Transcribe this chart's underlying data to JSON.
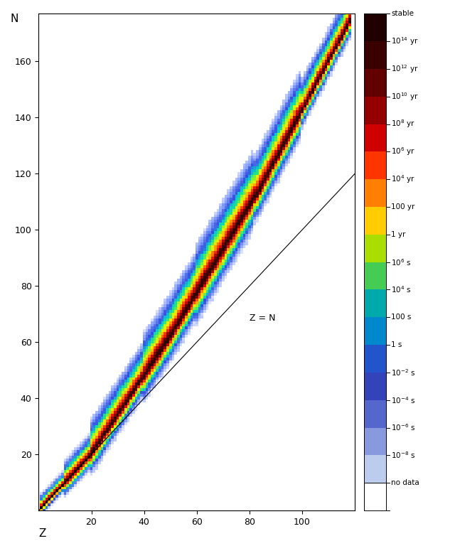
{
  "xlabel": "Z",
  "ylabel": "N",
  "xlim": [
    0,
    120
  ],
  "ylim": [
    0,
    177
  ],
  "xticks": [
    20,
    40,
    60,
    80,
    100
  ],
  "yticks": [
    20,
    40,
    60,
    80,
    100,
    120,
    140,
    160
  ],
  "zn_line_label": "Z = N",
  "grid_color": "#c8c8c8",
  "fig_bg_color": "#ffffff",
  "colorbar_colors": [
    "#200000",
    "#3a0000",
    "#600000",
    "#900000",
    "#cc0000",
    "#ff4000",
    "#ff8000",
    "#ffcc00",
    "#ccff00",
    "#80ff00",
    "#40cc40",
    "#00aaaa",
    "#0088cc",
    "#0055cc",
    "#0033aa",
    "#2222bb",
    "#8888dd",
    "#ffffff"
  ],
  "colorbar_labels": [
    "stable",
    "10$^{14}$ yr",
    "10$^{12}$ yr",
    "10$^{10}$ yr",
    "10$^{8}$ yr",
    "10$^{6}$ yr",
    "10$^{4}$ yr",
    "100 yr",
    "1 yr",
    "10$^{6}$ s",
    "10$^{4}$ s",
    "100 s",
    "1 s",
    "10$^{-2}$ s",
    "10$^{-4}$ s",
    "10$^{-6}$ s",
    "10$^{-8}$ s",
    "no data"
  ]
}
